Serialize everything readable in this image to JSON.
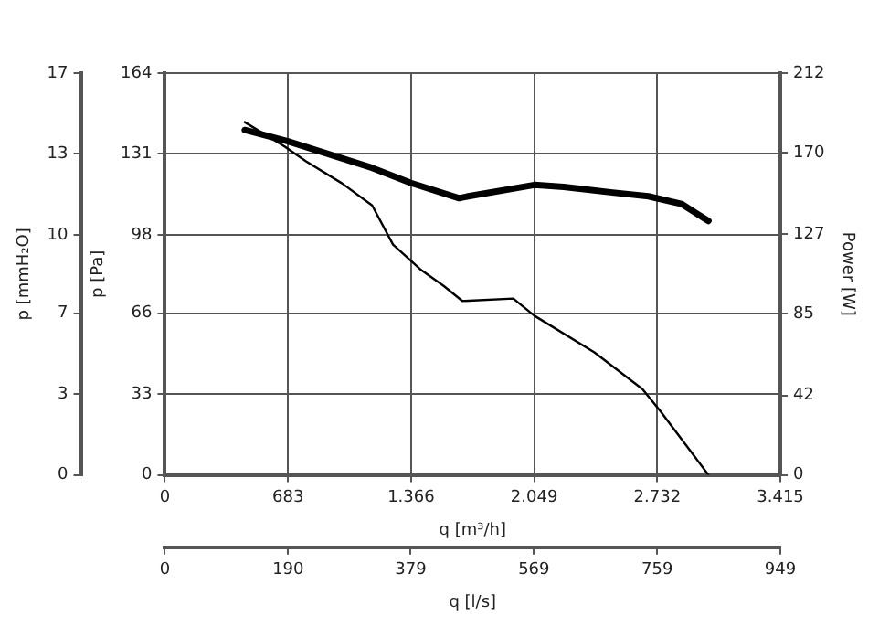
{
  "chart_data": {
    "type": "line",
    "xlabel": "q [m³/h]",
    "ylabel": "p [Pa]",
    "y2label": "Power [W]",
    "y3label": "p [mmH₂O]",
    "x2label": "q [l/s]",
    "xlim": [
      0,
      3415
    ],
    "xticks": [
      0,
      683,
      {
        "value": 1366,
        "label": "1.366"
      },
      {
        "value": 2049,
        "label": "2.049"
      },
      {
        "value": 2732,
        "label": "2.732"
      },
      {
        "value": 3415,
        "label": "3.415"
      }
    ],
    "ylim": [
      0,
      164
    ],
    "yticks": [
      0,
      33,
      66,
      98,
      131,
      164
    ],
    "y2lim": [
      0,
      212
    ],
    "y2ticks": [
      0,
      42,
      85,
      127,
      170,
      212
    ],
    "y3lim": [
      0,
      16.72
    ],
    "y3ticks": [
      0,
      {
        "value": 3.37,
        "label": "3"
      },
      {
        "value": 6.73,
        "label": "7"
      },
      {
        "value": 9.99,
        "label": "10"
      },
      {
        "value": 13.36,
        "label": "13"
      },
      {
        "value": 16.72,
        "label": "17"
      }
    ],
    "x2lim": [
      0,
      949
    ],
    "x2ticks": [
      0,
      190,
      379,
      569,
      759,
      949
    ],
    "grid": true,
    "marker": "none",
    "line_style": "solid",
    "series": [
      {
        "color": "#000000",
        "x": [
          443,
          666,
          783,
          983,
          1150,
          1266,
          1416,
          1550,
          1650,
          1933,
          2050,
          2383,
          2650,
          2750,
          3016
        ],
        "values": [
          144,
          134,
          128,
          119,
          110,
          94,
          84,
          77,
          71,
          72,
          65,
          50,
          35,
          26,
          0
        ]
      },
      {
        "color": "#000000",
        "axis": "y2",
        "x": [
          443,
          683,
          1150,
          1366,
          1633,
          1683,
          2050,
          2213,
          2483,
          2683,
          2866,
          3016
        ],
        "values": [
          182,
          176,
          162,
          154,
          146,
          147,
          153,
          152,
          149,
          147,
          143,
          134
        ]
      }
    ]
  }
}
